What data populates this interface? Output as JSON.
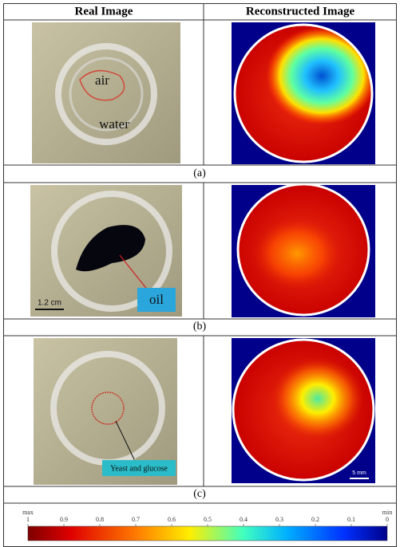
{
  "table": {
    "headers": [
      "Real Image",
      "Reconstructed Image"
    ],
    "rows": [
      {
        "labels": [
          "air",
          "water"
        ],
        "caption": "(a)"
      },
      {
        "labels": [
          "1.2 cm",
          "oil"
        ],
        "caption": "(b)"
      },
      {
        "labels": [
          "Yeast and glucose",
          "5 mm"
        ],
        "caption": "(c)"
      }
    ]
  },
  "colorbar": {
    "max_label": "max",
    "min_label": "min",
    "range": [
      1,
      0
    ],
    "ticks": [
      1,
      0.9,
      0.8,
      0.7,
      0.6,
      0.5,
      0.4,
      0.3,
      0.2,
      0.1,
      0
    ]
  }
}
